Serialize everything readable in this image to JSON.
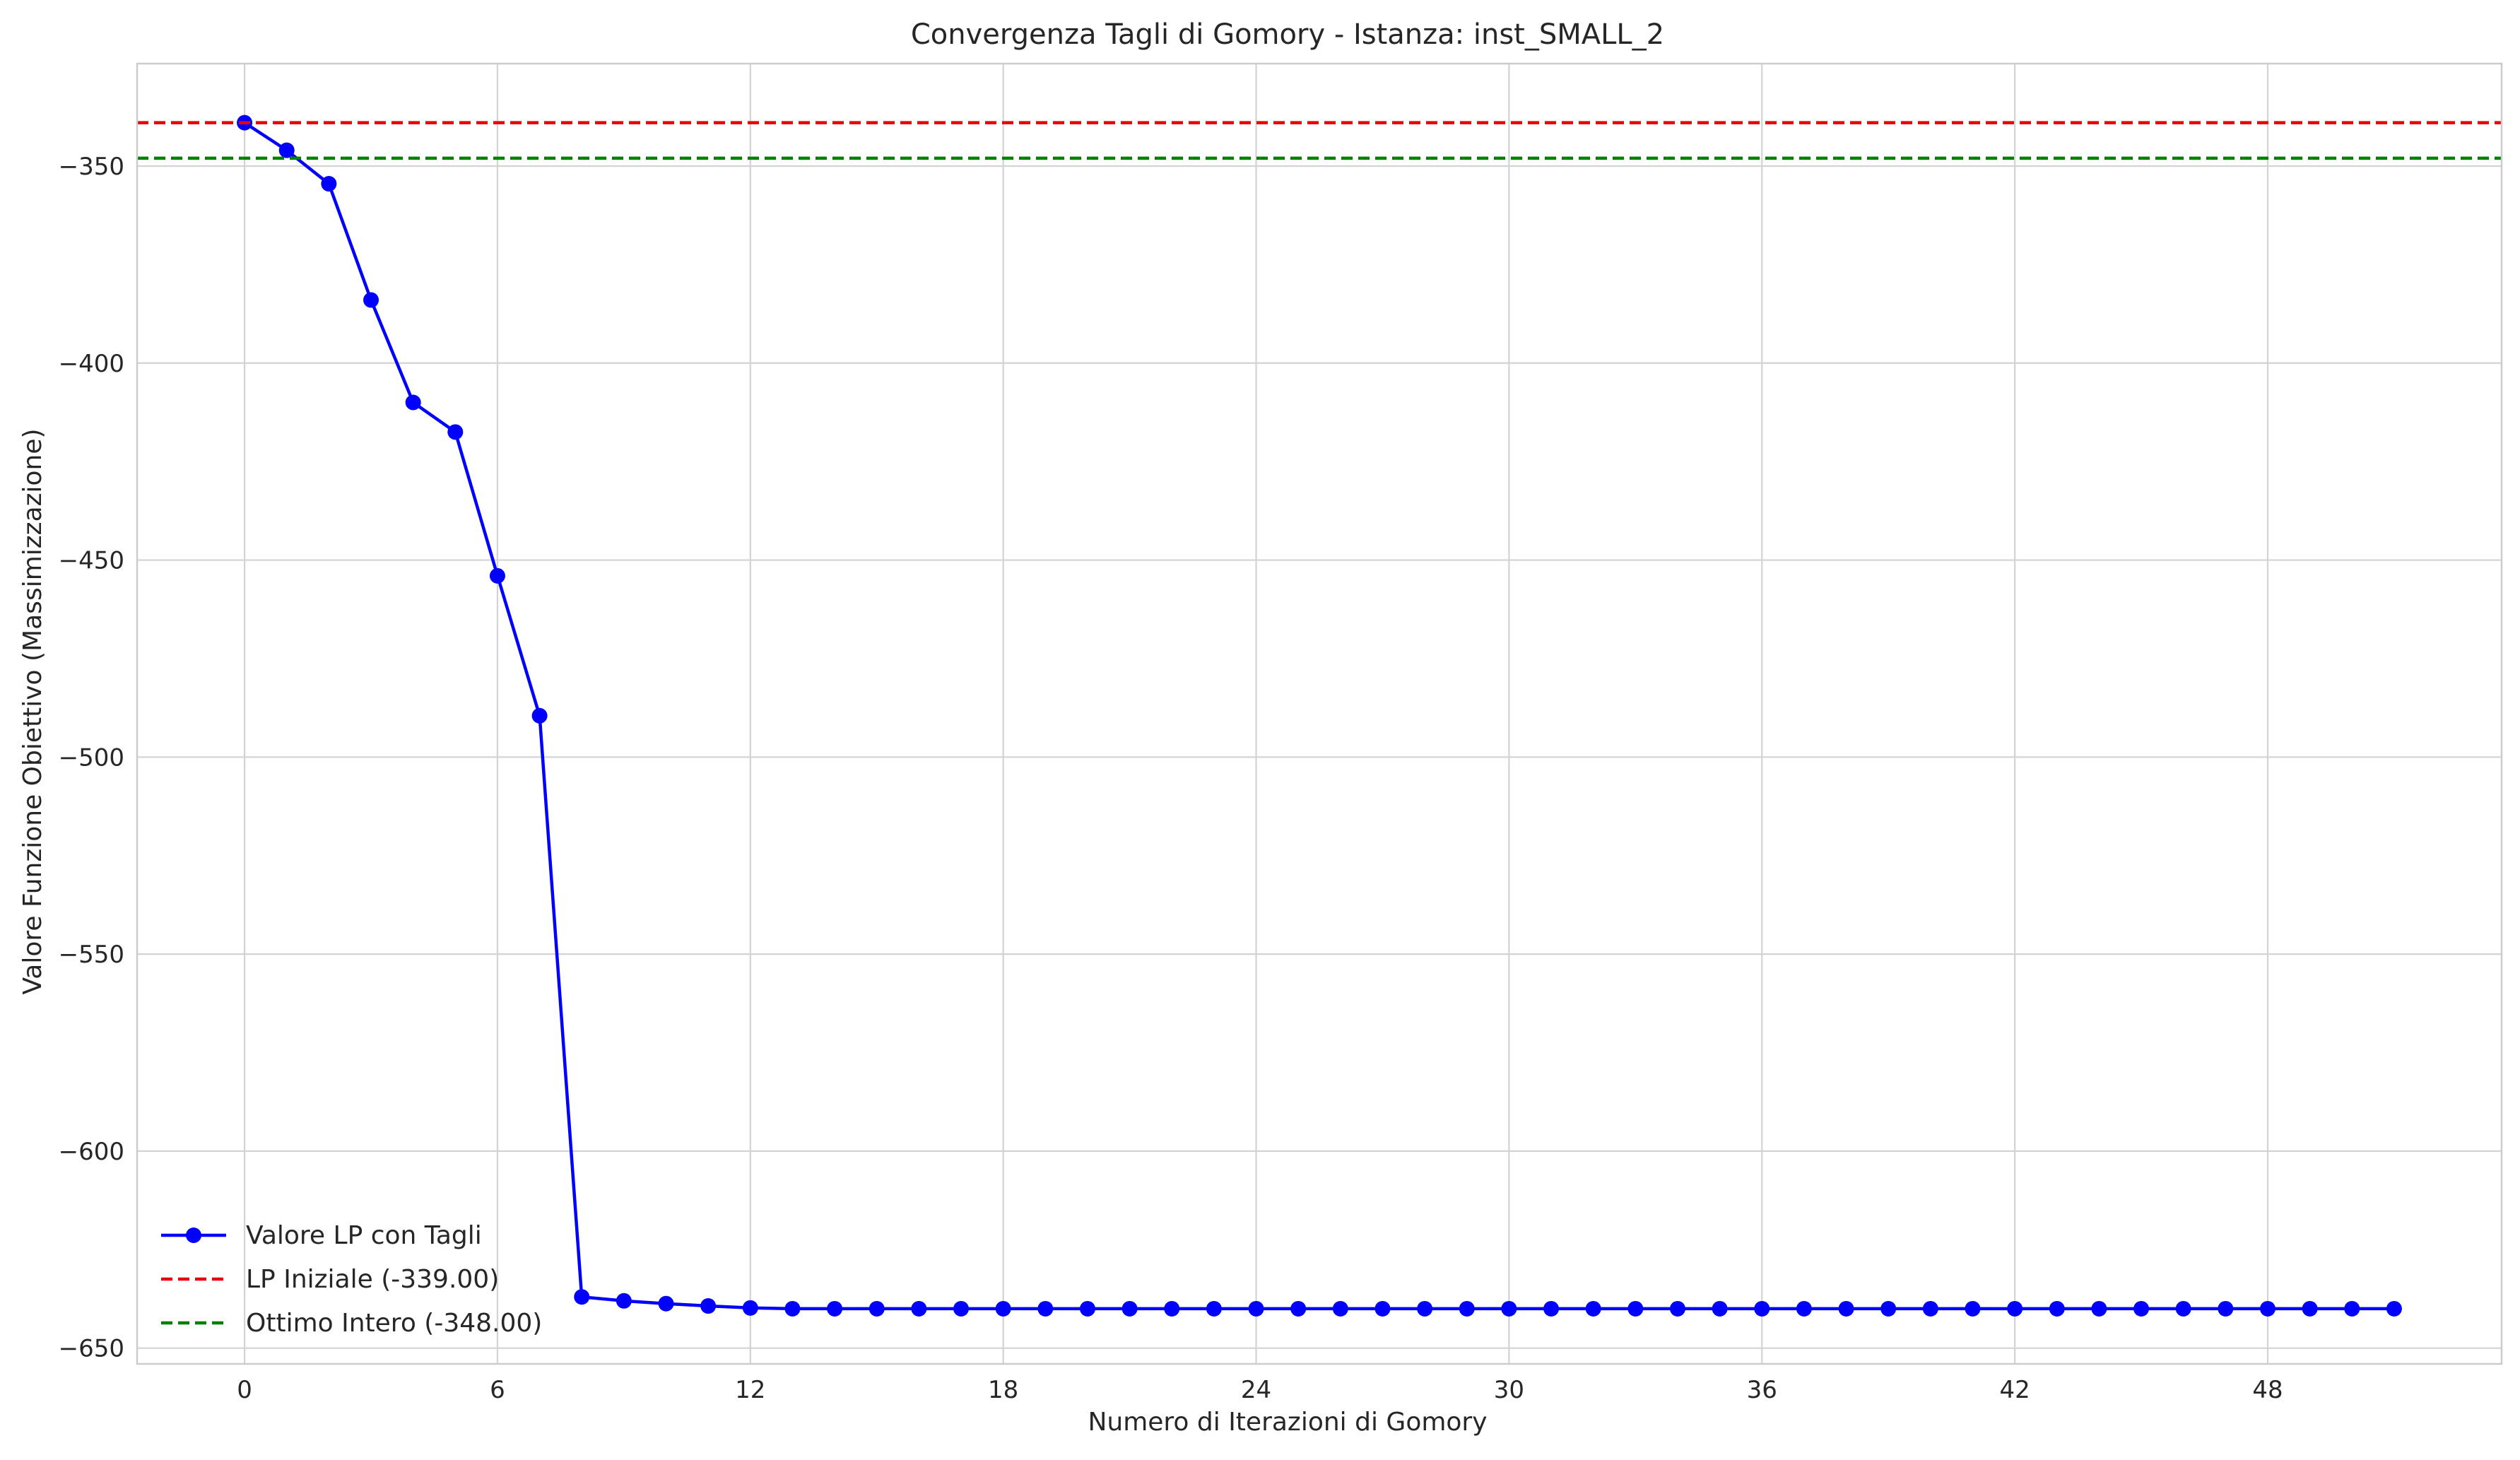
{
  "chart_data": {
    "type": "line",
    "title": "Convergenza Tagli di Gomory - Istanza: inst_SMALL_2",
    "xlabel": "Numero di Iterazioni di Gomory",
    "ylabel": "Valore Funzione Obiettivo (Massimizzazione)",
    "xlim": [
      -2.55,
      53.55
    ],
    "ylim": [
      -654,
      -324
    ],
    "xticks": [
      0,
      6,
      12,
      18,
      24,
      30,
      36,
      42,
      48
    ],
    "yticks": [
      -350,
      -400,
      -450,
      -500,
      -550,
      -600,
      -650
    ],
    "ytick_labels": [
      "−350",
      "−400",
      "−450",
      "−500",
      "−550",
      "−600",
      "−650"
    ],
    "grid": true,
    "legend_position": "lower-left",
    "series": [
      {
        "name": "Valore LP con Tagli",
        "color": "#0000ff",
        "style": "solid",
        "marker": "circle",
        "x": [
          0,
          1,
          2,
          3,
          4,
          5,
          6,
          7,
          8,
          9,
          10,
          11,
          12,
          13,
          14,
          15,
          16,
          17,
          18,
          19,
          20,
          21,
          22,
          23,
          24,
          25,
          26,
          27,
          28,
          29,
          30,
          31,
          32,
          33,
          34,
          35,
          36,
          37,
          38,
          39,
          40,
          41,
          42,
          43,
          44,
          45,
          46,
          47,
          48,
          49,
          50,
          51
        ],
        "y": [
          -339,
          -346,
          -354.5,
          -384,
          -410,
          -417.5,
          -454,
          -489.5,
          -637,
          -638,
          -638.7,
          -639.3,
          -639.8,
          -640,
          -640,
          -640,
          -640,
          -640,
          -640,
          -640,
          -640,
          -640,
          -640,
          -640,
          -640,
          -640,
          -640,
          -640,
          -640,
          -640,
          -640,
          -640,
          -640,
          -640,
          -640,
          -640,
          -640,
          -640,
          -640,
          -640,
          -640,
          -640,
          -640,
          -640,
          -640,
          -640,
          -640,
          -640,
          -640,
          -640,
          -640,
          -640
        ]
      },
      {
        "name": "LP Iniziale (-339.00)",
        "color": "#e8000b",
        "style": "dashed",
        "y": -339
      },
      {
        "name": "Ottimo Intero (-348.00)",
        "color": "#008000",
        "style": "dashed",
        "y": -348
      }
    ]
  }
}
